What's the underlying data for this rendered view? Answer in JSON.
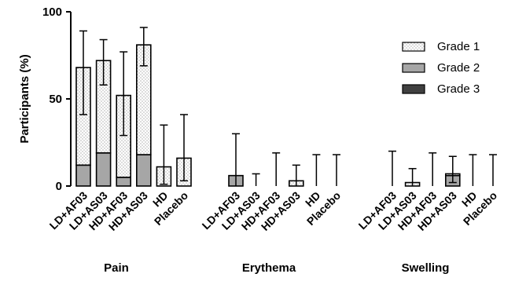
{
  "chart_data": {
    "type": "bar",
    "stacked": true,
    "ylabel": "Participants (%)",
    "xlabel": "",
    "title": "",
    "ylim": [
      0,
      100
    ],
    "yticks": [
      0,
      50,
      100
    ],
    "legend_position": "top-right",
    "groups": [
      "Pain",
      "Erythema",
      "Swelling"
    ],
    "categories": [
      "LD+AF03",
      "LD+AS03",
      "HD+AF03",
      "HD+AS03",
      "HD",
      "Placebo"
    ],
    "series": [
      {
        "name": "Grade 1",
        "fill": "dotted",
        "values": [
          [
            56,
            53,
            47,
            63,
            11,
            16
          ],
          [
            0,
            0,
            0,
            3,
            0,
            0
          ],
          [
            0,
            2,
            0,
            1,
            0,
            0
          ]
        ]
      },
      {
        "name": "Grade 2",
        "fill": "#a6a6a6",
        "values": [
          [
            12,
            19,
            5,
            18,
            0,
            0
          ],
          [
            6,
            0,
            0,
            0,
            0,
            0
          ],
          [
            0,
            0,
            0,
            6,
            0,
            0
          ]
        ]
      },
      {
        "name": "Grade 3",
        "fill": "#404040",
        "values": [
          [
            0,
            0,
            0,
            0,
            0,
            0
          ],
          [
            0,
            0,
            0,
            0,
            0,
            0
          ],
          [
            0,
            0,
            0,
            0,
            0,
            0
          ]
        ]
      }
    ],
    "error_bars": [
      [
        {
          "low": 41,
          "high": 89
        },
        {
          "low": 58,
          "high": 84
        },
        {
          "low": 29,
          "high": 77
        },
        {
          "low": 69,
          "high": 91
        },
        {
          "low": 1,
          "high": 35
        },
        {
          "low": 3,
          "high": 41
        }
      ],
      [
        {
          "low": 0,
          "high": 30
        },
        {
          "low": 0,
          "high": 7
        },
        {
          "low": 0,
          "high": 19
        },
        {
          "low": 0,
          "high": 12
        },
        {
          "low": 0,
          "high": 18
        },
        {
          "low": 0,
          "high": 18
        }
      ],
      [
        {
          "low": 0,
          "high": 20
        },
        {
          "low": 0,
          "high": 10
        },
        {
          "low": 0,
          "high": 19
        },
        {
          "low": 2,
          "high": 17
        },
        {
          "low": 0,
          "high": 18
        },
        {
          "low": 0,
          "high": 18
        }
      ]
    ]
  }
}
